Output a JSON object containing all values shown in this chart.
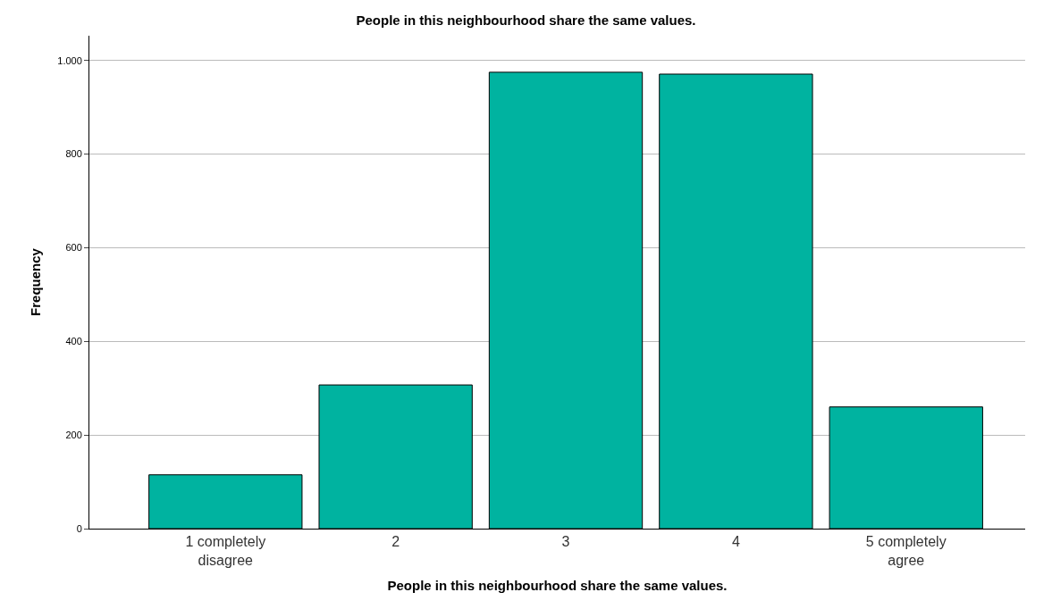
{
  "chart_data": {
    "type": "bar",
    "title": "People in this neighbourhood share the same values.",
    "xlabel": "People in this neighbourhood share the same values.",
    "ylabel": "Frequency",
    "categories": [
      "1 completely\ndisagree",
      "2",
      "3",
      "4",
      "5 completely\nagree"
    ],
    "values": [
      115,
      307,
      975,
      971,
      260
    ],
    "color": "#00b3a0",
    "ylim": [
      0,
      1053
    ],
    "yticks": [
      0,
      200,
      400,
      600,
      800,
      {
        "value": 1000,
        "label": "1.000"
      }
    ],
    "grid": "y"
  }
}
